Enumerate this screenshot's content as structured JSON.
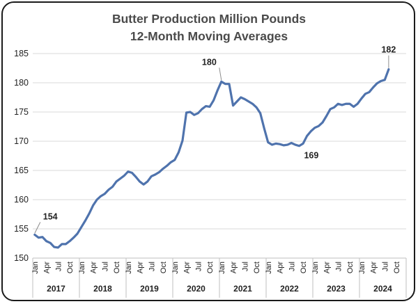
{
  "chart_data": {
    "type": "line",
    "title": "Butter Production Million Pounds",
    "subtitle": "12-Month Moving  Averages",
    "xlabel": "",
    "ylabel": "",
    "ylim": [
      150,
      185
    ],
    "yticks": [
      150,
      155,
      160,
      165,
      170,
      175,
      180,
      185
    ],
    "grid": true,
    "legend": "none",
    "line_color": "#4f73ad",
    "month_labels": [
      "Jan",
      "Apr",
      "Jul",
      "Oct"
    ],
    "years": [
      "2017",
      "2018",
      "2019",
      "2020",
      "2021",
      "2022",
      "2023",
      "2024"
    ],
    "series": [
      {
        "values": [
          154.0,
          153.5,
          153.6,
          152.9,
          152.6,
          151.9,
          151.8,
          152.4,
          152.4,
          152.9,
          153.5,
          154.2,
          155.3,
          156.4,
          157.6,
          159.0,
          160.0,
          160.6,
          161.0,
          161.7,
          162.2,
          163.1,
          163.6,
          164.1,
          164.8,
          164.6,
          163.9,
          163.1,
          162.6,
          163.1,
          164.0,
          164.3,
          164.7,
          165.3,
          165.8,
          166.4,
          166.8,
          168.1,
          170.1,
          174.9,
          175.0,
          174.5,
          174.8,
          175.5,
          176.0,
          175.9,
          177.0,
          178.7,
          180.2,
          179.8,
          179.8,
          176.1,
          176.8,
          177.5,
          177.2,
          176.8,
          176.4,
          175.8,
          174.8,
          172.2,
          169.8,
          169.4,
          169.6,
          169.5,
          169.3,
          169.4,
          169.7,
          169.4,
          169.2,
          169.6,
          170.9,
          171.7,
          172.3,
          172.6,
          173.2,
          174.3,
          175.5,
          175.8,
          176.4,
          176.2,
          176.4,
          176.4,
          175.9,
          176.4,
          177.3,
          178.1,
          178.4,
          179.2,
          179.9,
          180.3,
          180.5,
          182.3
        ]
      }
    ],
    "annotations": [
      {
        "text": "154",
        "index": 0
      },
      {
        "text": "180",
        "index": 48
      },
      {
        "text": "169",
        "index": 68
      },
      {
        "text": "182",
        "index": 91
      }
    ]
  }
}
